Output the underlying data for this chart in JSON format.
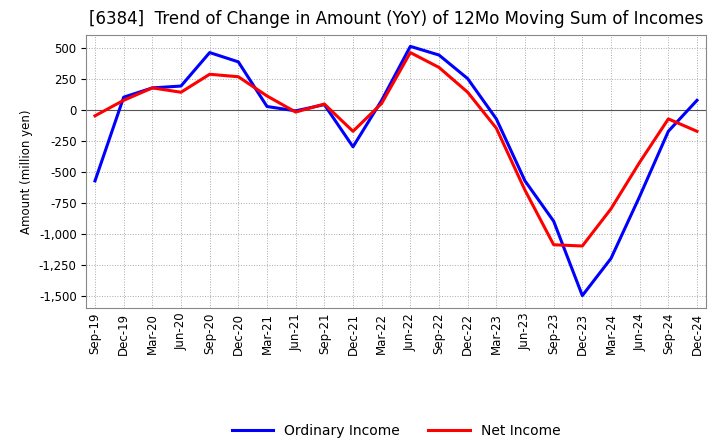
{
  "title": "[6384]  Trend of Change in Amount (YoY) of 12Mo Moving Sum of Incomes",
  "ylabel": "Amount (million yen)",
  "xlabels": [
    "Sep-19",
    "Dec-19",
    "Mar-20",
    "Jun-20",
    "Sep-20",
    "Dec-20",
    "Mar-21",
    "Jun-21",
    "Sep-21",
    "Dec-21",
    "Mar-22",
    "Jun-22",
    "Sep-22",
    "Dec-22",
    "Mar-23",
    "Jun-23",
    "Sep-23",
    "Dec-23",
    "Mar-24",
    "Jun-24",
    "Sep-24",
    "Dec-24"
  ],
  "ordinary_income": [
    -575,
    100,
    175,
    190,
    460,
    385,
    25,
    -10,
    40,
    -300,
    75,
    510,
    440,
    250,
    -75,
    -575,
    -900,
    -1500,
    -1200,
    -700,
    -175,
    75
  ],
  "net_income": [
    -50,
    75,
    175,
    140,
    285,
    265,
    110,
    -20,
    45,
    -175,
    50,
    460,
    340,
    140,
    -150,
    -650,
    -1090,
    -1100,
    -800,
    -425,
    -75,
    -175
  ],
  "ordinary_color": "#0000ff",
  "net_color": "#ff0000",
  "ylim": [
    -1600,
    600
  ],
  "yticks": [
    500,
    250,
    0,
    -250,
    -500,
    -750,
    -1000,
    -1250,
    -1500
  ],
  "grid_color": "#aaaaaa",
  "background_color": "#ffffff",
  "title_fontsize": 12,
  "axis_fontsize": 8.5,
  "legend_fontsize": 10
}
